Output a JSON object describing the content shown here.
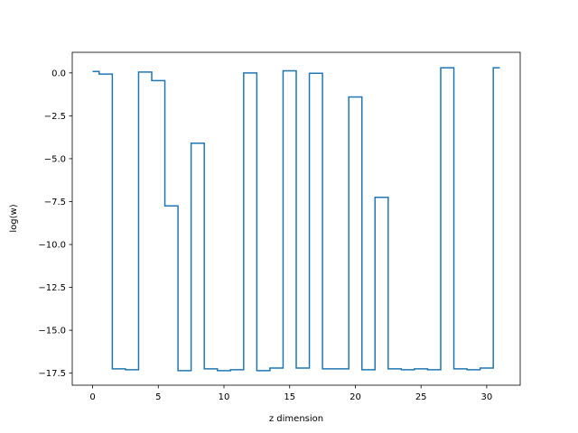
{
  "chart_data": {
    "type": "line",
    "drawstyle": "steps-mid",
    "xlabel": "z dimension",
    "ylabel": "log(w)",
    "xlim": [
      -1.55,
      32.55
    ],
    "ylim": [
      -18.2,
      1.2
    ],
    "xticks": [
      0,
      5,
      10,
      15,
      20,
      25,
      30
    ],
    "xtick_labels": [
      "0",
      "5",
      "10",
      "15",
      "20",
      "25",
      "30"
    ],
    "yticks": [
      0.0,
      -2.5,
      -5.0,
      -7.5,
      -10.0,
      -12.5,
      -15.0,
      -17.5
    ],
    "ytick_labels": [
      "0.0",
      "−2.5",
      "−5.0",
      "−7.5",
      "−10.0",
      "−12.5",
      "−15.0",
      "−17.5"
    ],
    "grid": false,
    "color": "#1f77b4",
    "series": [
      {
        "x": [
          0,
          1,
          2,
          3,
          4,
          5,
          6,
          7,
          8,
          9,
          10,
          11,
          12,
          13,
          14,
          15,
          16,
          17,
          18,
          19,
          20,
          21,
          22,
          23,
          24,
          25,
          26,
          27,
          28,
          29,
          30,
          31
        ],
        "values": [
          0.08,
          -0.07,
          -17.25,
          -17.3,
          0.05,
          -0.45,
          -7.75,
          -17.35,
          -4.1,
          -17.25,
          -17.35,
          -17.3,
          0.0,
          -17.35,
          -17.2,
          0.12,
          -17.2,
          -0.02,
          -17.25,
          -17.25,
          -1.4,
          -17.3,
          -7.25,
          -17.25,
          -17.3,
          -17.25,
          -17.3,
          0.3,
          -17.25,
          -17.3,
          -17.2,
          0.3
        ]
      }
    ]
  }
}
